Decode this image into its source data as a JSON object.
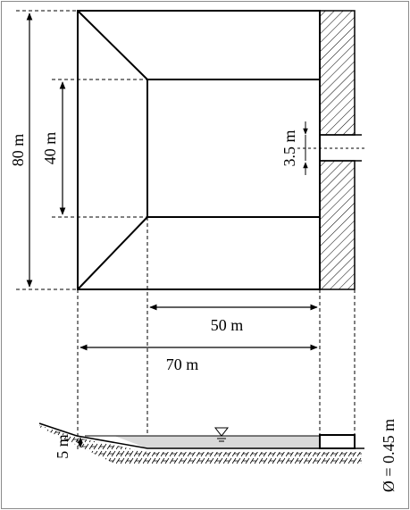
{
  "labels": {
    "total_height": "80 m",
    "inner_height": "40 m",
    "outlet_height": "3.5 m",
    "inner_width": "50 m",
    "total_width": "70 m",
    "depth": "5 m",
    "pipe_diameter": "Ø = 0.45 m"
  },
  "colors": {
    "stroke": "#000000",
    "hatch": "#000000",
    "water": "#d9d9d9",
    "frame": "#8a8a8a"
  }
}
